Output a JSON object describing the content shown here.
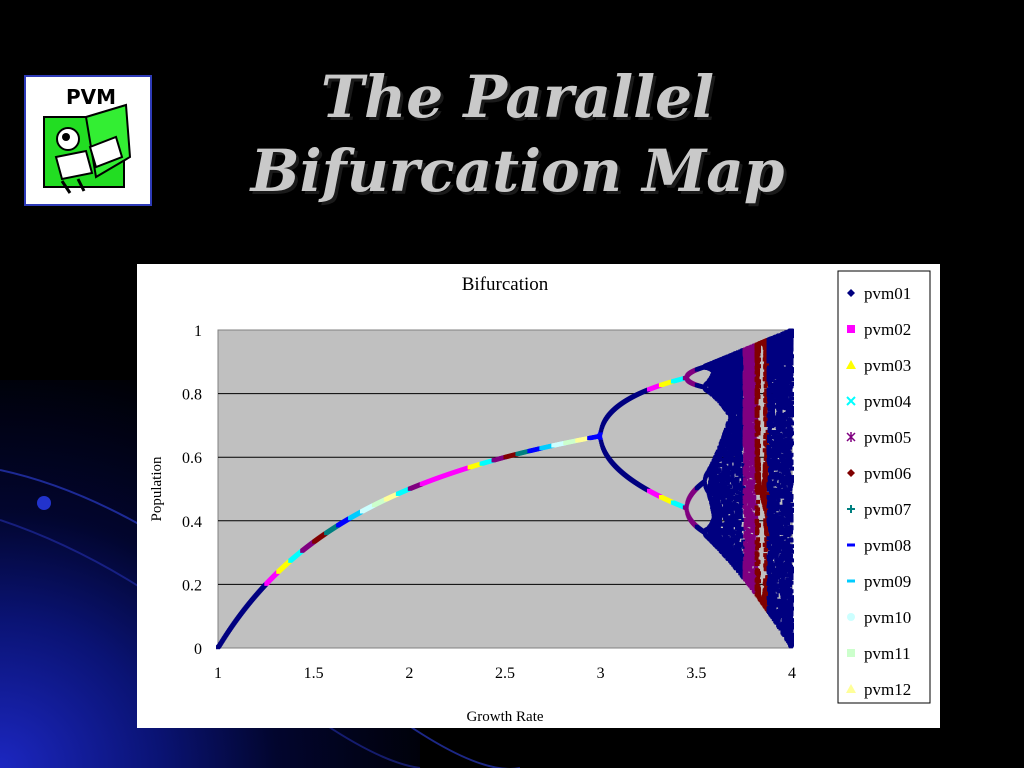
{
  "slide": {
    "title_line1": "The Parallel",
    "title_line2": "Bifurcation Map",
    "logo_text": "PVM"
  },
  "colors": {
    "background": "#000000",
    "title": "#c9c9c9",
    "plot_area": "#c0c0c0",
    "branch_outline": "#1a1aff"
  },
  "chart_data": {
    "type": "scatter",
    "title": "Bifurcation",
    "xlabel": "Growth Rate",
    "ylabel": "Population",
    "xlim": [
      1,
      4
    ],
    "ylim": [
      0,
      1
    ],
    "xticks": [
      "1",
      "1.5",
      "2",
      "2.5",
      "3",
      "3.5",
      "4"
    ],
    "yticks": [
      "0",
      "0.2",
      "0.4",
      "0.6",
      "0.8",
      "1"
    ],
    "grid": "horizontal",
    "legend_position": "right",
    "series": [
      {
        "name": "pvm01",
        "marker": "diamond",
        "color": "#000080",
        "r_range": [
          1.0,
          1.25,
          3.0,
          3.25,
          3.5,
          3.75,
          3.875,
          4.0
        ]
      },
      {
        "name": "pvm02",
        "marker": "square",
        "color": "#ff00ff",
        "r_range": [
          1.0625,
          1.3125,
          2.0625,
          2.3125,
          3.0625,
          3.3125,
          3.5625,
          3.625
        ]
      },
      {
        "name": "pvm03",
        "marker": "triangle",
        "color": "#ffff00",
        "r_range": [
          1.125,
          1.375,
          2.125,
          2.375,
          3.125,
          3.375,
          3.625,
          3.6875
        ]
      },
      {
        "name": "pvm04",
        "marker": "x",
        "color": "#00ffff",
        "r_range": [
          1.1875,
          1.4375,
          2.1875,
          2.4375,
          3.1875,
          3.4375,
          3.6875,
          3.75
        ]
      },
      {
        "name": "pvm05",
        "marker": "star",
        "color": "#800080",
        "r_range": [
          1.25,
          1.5,
          2.25,
          2.5,
          3.25,
          3.5,
          3.75,
          3.8125
        ]
      },
      {
        "name": "pvm06",
        "marker": "diamond",
        "color": "#800000",
        "r_range": [
          1.3125,
          1.5625,
          2.3125,
          2.5625,
          3.3125,
          3.5625,
          3.8125,
          3.875
        ]
      },
      {
        "name": "pvm07",
        "marker": "plus",
        "color": "#008080",
        "r_range": [
          1.375,
          1.625,
          2.375,
          2.625,
          3.375,
          3.625,
          3.875,
          3.9375
        ]
      },
      {
        "name": "pvm08",
        "marker": "dash",
        "color": "#0000ff",
        "r_range": [
          1.4375,
          1.6875,
          2.4375,
          2.6875,
          3.4375,
          3.6875,
          3.9375,
          4.0
        ]
      },
      {
        "name": "pvm09",
        "marker": "dash",
        "color": "#00ccff",
        "r_range": [
          1.5,
          1.75,
          2.5,
          2.75,
          3.5,
          3.75
        ]
      },
      {
        "name": "pvm10",
        "marker": "circle",
        "color": "#ccffff",
        "r_range": [
          1.5625,
          1.8125,
          2.5625,
          2.8125,
          3.5625,
          3.8125
        ]
      },
      {
        "name": "pvm11",
        "marker": "square",
        "color": "#ccffcc",
        "r_range": [
          1.625,
          1.875,
          2.625,
          2.875,
          3.625,
          3.875
        ]
      },
      {
        "name": "pvm12",
        "marker": "triangle",
        "color": "#ffff99",
        "r_range": [
          1.6875,
          1.9375,
          2.6875,
          2.9375,
          3.6875,
          3.9375
        ]
      }
    ]
  }
}
